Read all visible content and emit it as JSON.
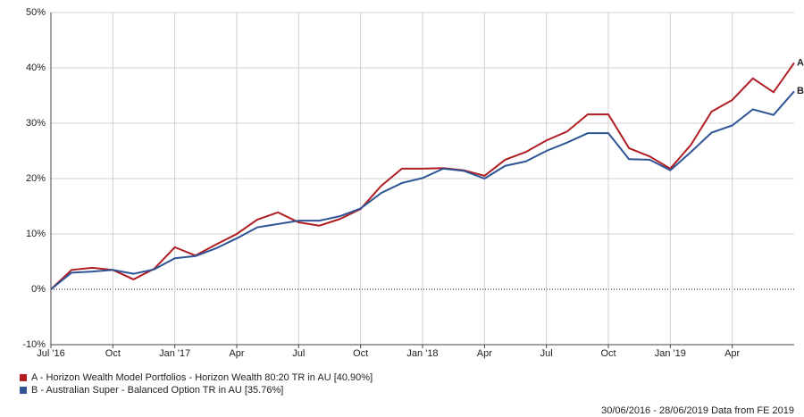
{
  "chart_data": {
    "type": "line",
    "categories": [
      "Jul '16",
      null,
      null,
      "Oct",
      null,
      null,
      "Jan '17",
      null,
      null,
      "Apr",
      null,
      null,
      "Jul",
      null,
      null,
      "Oct",
      null,
      null,
      "Jan '18",
      null,
      null,
      "Apr",
      null,
      null,
      "Jul",
      null,
      null,
      "Oct",
      null,
      null,
      "Jan '19",
      null,
      null,
      "Apr",
      null,
      null,
      null
    ],
    "series": [
      {
        "name": "A - Horizon Wealth Model Portfolios - Horizon Wealth 80:20 TR in AU [40.90%]",
        "end_label": "A",
        "color": "#b01e23",
        "values": [
          0,
          3.5,
          3.9,
          3.5,
          1.8,
          3.7,
          7.6,
          6.1,
          8.1,
          10,
          12.6,
          13.9,
          12.1,
          11.5,
          12.7,
          14.5,
          18.7,
          21.8,
          21.8,
          21.9,
          21.5,
          20.5,
          23.4,
          24.8,
          26.9,
          28.5,
          31.6,
          31.6,
          25.5,
          24.0,
          21.8,
          26.1,
          32.1,
          34.2,
          38.1,
          35.6,
          40.9
        ]
      },
      {
        "name": "B - Australian Super - Balanced Option TR in AU [35.76%]",
        "end_label": "B",
        "color": "#2f5597",
        "values": [
          0,
          3.0,
          3.2,
          3.5,
          2.8,
          3.6,
          5.6,
          6.0,
          7.4,
          9.2,
          11.2,
          11.8,
          12.4,
          12.4,
          13.2,
          14.6,
          17.4,
          19.2,
          20.1,
          21.8,
          21.4,
          20.0,
          22.3,
          23.1,
          25.0,
          26.5,
          28.2,
          28.2,
          23.5,
          23.4,
          21.5,
          24.8,
          28.3,
          29.6,
          32.5,
          31.5,
          35.76
        ]
      }
    ],
    "ylim": [
      -10,
      50
    ],
    "yticks": [
      {
        "value": -10,
        "label": "-10%"
      },
      {
        "value": 0,
        "label": "0%"
      },
      {
        "value": 10,
        "label": "10%"
      },
      {
        "value": 20,
        "label": "20%"
      },
      {
        "value": 30,
        "label": "30%"
      },
      {
        "value": 40,
        "label": "40%"
      },
      {
        "value": 50,
        "label": "50%"
      }
    ],
    "grid": true,
    "footer": "30/06/2016 - 28/06/2019 Data from FE 2019"
  }
}
